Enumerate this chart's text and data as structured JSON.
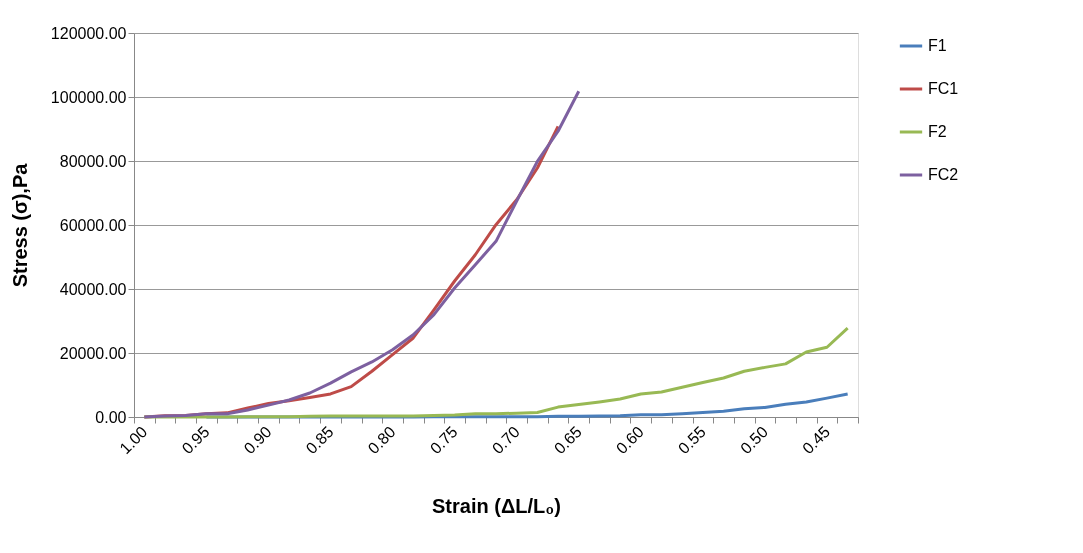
{
  "chart_data": {
    "type": "line",
    "xlabel": "Strain (ΔL/L₀)",
    "ylabel": "Stress (σ),Pa",
    "categories": [
      "1.00",
      null,
      null,
      "0.95",
      null,
      null,
      "0.90",
      null,
      null,
      "0.85",
      null,
      null,
      "0.80",
      null,
      null,
      "0.75",
      null,
      null,
      "0.70",
      null,
      null,
      "0.65",
      null,
      null,
      "0.60",
      null,
      null,
      "0.55",
      null,
      null,
      "0.50",
      null,
      null,
      "0.45",
      null
    ],
    "series": [
      {
        "name": "F1",
        "color": "#4a7ebb",
        "values": [
          null,
          null,
          null,
          0,
          0,
          0,
          0,
          0,
          0,
          0,
          0,
          0,
          0,
          0,
          100,
          100,
          100,
          100,
          100,
          100,
          200,
          200,
          300,
          400,
          700,
          700,
          1000,
          1400,
          1800,
          2600,
          3000,
          4000,
          4700,
          5900,
          7200
        ]
      },
      {
        "name": "FC1",
        "color": "#be4b48",
        "values": [
          0,
          400,
          500,
          1000,
          1300,
          2800,
          4200,
          5100,
          6100,
          7200,
          9500,
          14300,
          19500,
          24700,
          33500,
          42500,
          50700,
          60100,
          67900,
          77800,
          90800,
          null,
          null,
          null,
          null,
          null,
          null,
          null,
          null,
          null,
          null,
          null,
          null,
          null,
          null
        ]
      },
      {
        "name": "F2",
        "color": "#98b954",
        "values": [
          0,
          0,
          0,
          0,
          0,
          100,
          100,
          100,
          200,
          300,
          300,
          300,
          300,
          300,
          500,
          600,
          1000,
          1000,
          1200,
          1400,
          3100,
          3900,
          4700,
          5600,
          7200,
          7800,
          9300,
          10800,
          12200,
          14300,
          15500,
          16600,
          20300,
          21800,
          27800
        ]
      },
      {
        "name": "FC2",
        "color": "#7d60a0",
        "values": [
          0,
          300,
          500,
          1000,
          1000,
          2200,
          3700,
          5300,
          7500,
          10600,
          14100,
          17200,
          21000,
          25700,
          32000,
          40300,
          47600,
          54900,
          67500,
          79900,
          89300,
          101800,
          null,
          null,
          null,
          null,
          null,
          null,
          null,
          null,
          null,
          null,
          null,
          null,
          null
        ]
      }
    ],
    "ylim": [
      0,
      120000
    ],
    "yticks": [
      {
        "value": 0,
        "label": "0.00"
      },
      {
        "value": 20000,
        "label": "20000.00"
      },
      {
        "value": 40000,
        "label": "40000.00"
      },
      {
        "value": 60000,
        "label": "60000.00"
      },
      {
        "value": 80000,
        "label": "80000.00"
      },
      {
        "value": 100000,
        "label": "100000.00"
      },
      {
        "value": 120000,
        "label": "120000.00"
      }
    ],
    "grid": "y",
    "legend": "right",
    "marker": "none",
    "line_style": "solid"
  }
}
